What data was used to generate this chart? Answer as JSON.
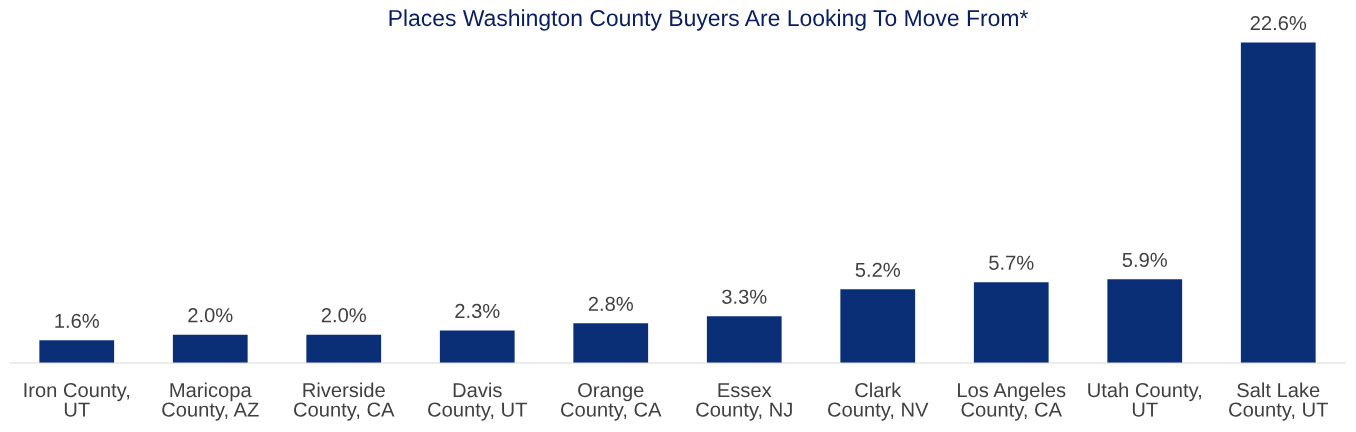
{
  "chart_data": {
    "type": "bar",
    "title": "Places Washington County Buyers Are Looking To Move From*",
    "categories": [
      "Iron County,\nUT",
      "Maricopa\nCounty, AZ",
      "Riverside\nCounty, CA",
      "Davis\nCounty, UT",
      "Orange\nCounty, CA",
      "Essex\nCounty, NJ",
      "Clark\nCounty, NV",
      "Los Angeles\nCounty, CA",
      "Utah County,\nUT",
      "Salt Lake\nCounty, UT"
    ],
    "values": [
      1.6,
      2.0,
      2.0,
      2.3,
      2.8,
      3.3,
      5.2,
      5.7,
      5.9,
      22.6
    ],
    "value_labels": [
      "1.6%",
      "2.0%",
      "2.0%",
      "2.3%",
      "2.8%",
      "3.3%",
      "5.2%",
      "5.7%",
      "5.9%",
      "22.6%"
    ],
    "color": "#0b2f77",
    "grid": false,
    "legend": false
  }
}
